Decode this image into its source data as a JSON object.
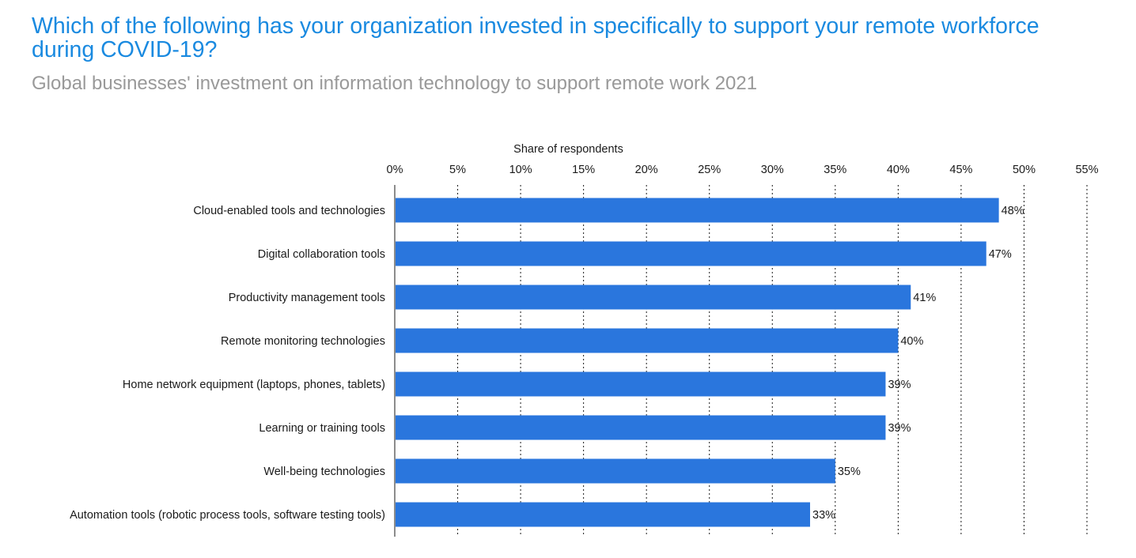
{
  "header": {
    "title": "Which of the following has your organization invested in specifically to support your remote workforce during COVID-19?",
    "subtitle": "Global businesses' investment on information technology to support remote work 2021"
  },
  "colors": {
    "title": "#1a8ae0",
    "subtitle": "#999999",
    "bar": "#2a76dd",
    "gridline": "#1a1a1a",
    "text": "#1a1a1a"
  },
  "chart_data": {
    "type": "bar",
    "orientation": "horizontal",
    "xlabel": "Share of respondents",
    "xlim": [
      0,
      55
    ],
    "x_ticks": [
      0,
      5,
      10,
      15,
      20,
      25,
      30,
      35,
      40,
      45,
      50,
      55
    ],
    "x_tick_labels": [
      "0%",
      "5%",
      "10%",
      "15%",
      "20%",
      "25%",
      "30%",
      "35%",
      "40%",
      "45%",
      "50%",
      "55%"
    ],
    "x_axis_position": "top",
    "grid": "vertical dotted",
    "categories": [
      "Cloud-enabled tools and technologies",
      "Digital collaboration tools",
      "Productivity management tools",
      "Remote monitoring technologies",
      "Home network equipment (laptops, phones, tablets)",
      "Learning or training tools",
      "Well-being technologies",
      "Automation tools (robotic process tools, software testing tools)"
    ],
    "values": [
      48,
      47,
      41,
      40,
      39,
      39,
      35,
      33
    ],
    "value_labels": [
      "48%",
      "47%",
      "41%",
      "40%",
      "39%",
      "39%",
      "35%",
      "33%"
    ]
  }
}
